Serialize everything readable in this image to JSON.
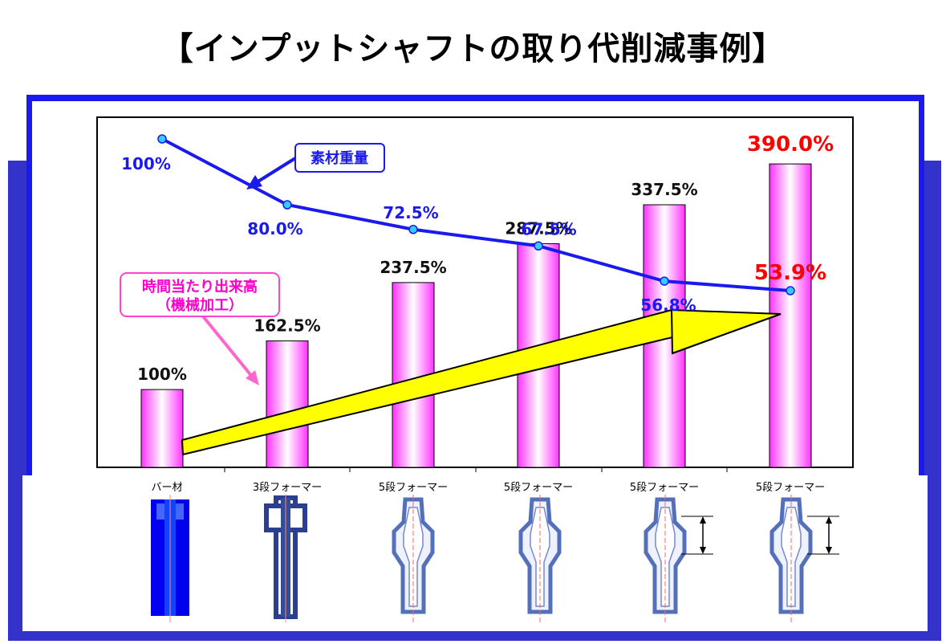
{
  "title": "【インプットシャフトの取り代削減事例】",
  "colors": {
    "frame_blue": "#3333cc",
    "frame_border": "#1a1aee",
    "line_blue": "#1a1aee",
    "bar_magenta": "#ff44ff",
    "arrow_yellow": "#ffff00",
    "callout_pink": "#ff44cc",
    "highlight_red": "#ff0000"
  },
  "callouts": {
    "weight": "素材重量",
    "throughput_line1": "時間当たり出来高",
    "throughput_line2": "（機械加工）"
  },
  "chart_data": {
    "type": "bar",
    "categories": [
      "バー材",
      "3段フォーマー",
      "5段フォーマー",
      "5段フォーマー",
      "5段フォーマー",
      "5段フォーマー"
    ],
    "ylim": [
      0,
      450
    ],
    "series": [
      {
        "kind": "bar",
        "values": [
          100,
          162.5,
          237.5,
          287.5,
          337.5,
          390.0
        ],
        "labels": [
          "100%",
          "162.5%",
          "237.5%",
          "287.5%",
          "337.5%",
          "390.0%"
        ],
        "highlight_last": true
      },
      {
        "kind": "line",
        "values": [
          100,
          80.0,
          72.5,
          67.5,
          56.8,
          53.9
        ],
        "labels": [
          "100%",
          "80.0%",
          "72.5%",
          "67.5%",
          "56.8%",
          "53.9%"
        ],
        "highlight_last": true
      }
    ],
    "grid": false,
    "legend": "none"
  },
  "parts": [
    {
      "icon": "bar-stock-part-icon"
    },
    {
      "icon": "three-stage-former-part-icon"
    },
    {
      "icon": "five-stage-former-part-icon"
    },
    {
      "icon": "five-stage-former-part-icon"
    },
    {
      "icon": "five-stage-former-part-icon"
    },
    {
      "icon": "five-stage-former-part-icon"
    }
  ]
}
